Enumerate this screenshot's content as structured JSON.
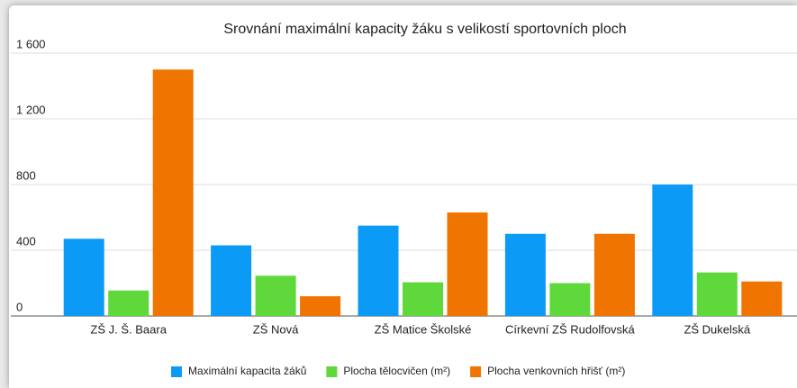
{
  "chart_data": {
    "type": "bar",
    "title": "Srovnání maximální kapacity žáku s velikostí sportovních ploch",
    "categories": [
      "ZŠ J. Š. Baara",
      "ZŠ Nová",
      "ZŠ Matice Školské",
      "Církevní ZŠ Rudolfovská",
      "ZŠ Dukelská"
    ],
    "series": [
      {
        "name": "Maximální kapacita žáků",
        "color": "#0b9bf7",
        "values": [
          470,
          430,
          550,
          500,
          800
        ]
      },
      {
        "name": "Plocha tělocvičen (m²)",
        "color": "#5ed83a",
        "values": [
          155,
          245,
          205,
          200,
          265
        ]
      },
      {
        "name": "Plocha venkovních hřišť (m²)",
        "color": "#f07400",
        "values": [
          1500,
          120,
          630,
          500,
          210
        ]
      }
    ],
    "ylim": [
      0,
      1600
    ],
    "yticks": [
      0,
      400,
      800,
      {
        "value": 1200,
        "label": "1 200"
      },
      {
        "value": 1600,
        "label": "1 600"
      }
    ],
    "grid": true,
    "legend": "bottom"
  }
}
